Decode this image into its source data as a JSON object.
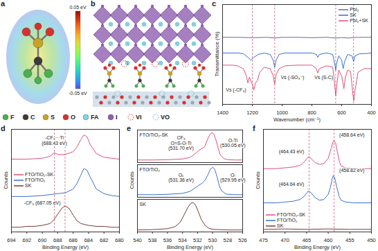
{
  "panels": [
    {
      "panel_label": "a",
      "colorbar": {
        "range": [
          -0.05,
          0.05
        ],
        "ticks": [
          {
            "value": 0.05,
            "label": "0.05 eV"
          },
          {
            "value": -0.05,
            "label": "-0.05 eV"
          }
        ]
      }
    },
    {
      "panel_label": "b"
    }
  ],
  "atom_legend": [
    {
      "name": "F",
      "color": "#4caf50",
      "marker": "circle"
    },
    {
      "name": "C",
      "color": "#3a3a3a",
      "marker": "circle"
    },
    {
      "name": "S",
      "color": "#c9a227",
      "marker": "circle"
    },
    {
      "name": "O",
      "color": "#d9302c",
      "marker": "circle"
    },
    {
      "name": "FA",
      "color": "#7fd3e0",
      "marker": "circle"
    },
    {
      "name": "I",
      "color": "#8e5fb0",
      "marker": "circle"
    },
    {
      "name": "VI",
      "color": "#d9302c",
      "marker": "dashed-circle"
    },
    {
      "name": "VO",
      "color": "#3bb6c8",
      "marker": "dashed-circle"
    }
  ],
  "chart_data": [
    {
      "type": "line",
      "panel_label": "c",
      "x_label": "Wavenumber (cm⁻¹)",
      "y_label": "Transmittance (%)",
      "xlim": [
        1400,
        400
      ],
      "xticks": [
        1400,
        1200,
        1000,
        800,
        600,
        400
      ],
      "ylim": [
        0,
        140
      ],
      "tick_labels": "x",
      "legend": "top-right",
      "vlines": [
        1200,
        1050,
        640,
        520
      ],
      "annotations": [
        {
          "text": "Vs (-CF₃)",
          "x": 1310,
          "y": 20
        },
        {
          "text": "Vs (-SO₃⁻)",
          "x": 930,
          "y": 38
        },
        {
          "text": "Vs (S-C)",
          "x": 720,
          "y": 38
        }
      ],
      "series": [
        {
          "name": "PbI₂",
          "color": "#7a5fa0",
          "x": [
            1400,
            1300,
            1200,
            1100,
            1050,
            1000,
            900,
            800,
            700,
            640,
            600,
            550,
            500,
            450,
            400
          ],
          "values": [
            94,
            94,
            93.5,
            94,
            93,
            94,
            94,
            93.5,
            94,
            93,
            93.5,
            93,
            94,
            94,
            94
          ]
        },
        {
          "name": "SK",
          "color": "#3a6fd0",
          "x": [
            1400,
            1300,
            1260,
            1230,
            1210,
            1190,
            1160,
            1120,
            1080,
            1060,
            1050,
            1040,
            1020,
            980,
            900,
            800,
            770,
            760,
            750,
            700,
            660,
            645,
            640,
            635,
            620,
            600,
            590,
            580,
            560,
            530,
            520,
            510,
            480,
            450,
            400
          ],
          "values": [
            72,
            72,
            71,
            66,
            62,
            66,
            70,
            72,
            70,
            62,
            52,
            62,
            70,
            72,
            72,
            72,
            70,
            66,
            70,
            72,
            70,
            55,
            48,
            56,
            68,
            62,
            50,
            60,
            70,
            68,
            60,
            68,
            71,
            71,
            72
          ]
        },
        {
          "name": "PbI₂+SK",
          "color": "#e0507a",
          "x": [
            1400,
            1330,
            1300,
            1260,
            1240,
            1230,
            1220,
            1200,
            1190,
            1180,
            1165,
            1150,
            1120,
            1080,
            1060,
            1050,
            1040,
            1020,
            980,
            900,
            800,
            770,
            760,
            750,
            700,
            660,
            648,
            640,
            632,
            620,
            600,
            585,
            575,
            560,
            540,
            525,
            518,
            510,
            490,
            450,
            400
          ],
          "values": [
            55,
            55,
            54,
            50,
            40,
            30,
            38,
            28,
            20,
            30,
            34,
            45,
            52,
            50,
            40,
            28,
            42,
            50,
            54,
            55,
            55,
            50,
            44,
            50,
            54,
            52,
            30,
            12,
            28,
            48,
            40,
            22,
            38,
            48,
            46,
            15,
            5,
            20,
            45,
            50,
            50
          ]
        }
      ]
    },
    {
      "type": "line",
      "panel_label": "d",
      "x_label": "Binding Energy (eV)",
      "y_label": "Counts",
      "xlim": [
        694,
        680
      ],
      "xticks": [
        694,
        692,
        690,
        688,
        686,
        684,
        682,
        680
      ],
      "ylim": [
        0,
        110
      ],
      "tick_labels": "x",
      "legend": "left",
      "vlines": [
        688.43,
        687.05
      ],
      "annotations": [
        {
          "text": "-CF₃···Ti\n(688.43 eV)",
          "x": 688.43,
          "y": 98
        },
        {
          "text": "-CF₃ (687.05 eV)",
          "x": 690,
          "y": 31
        }
      ],
      "series": [
        {
          "name": "FTO/TiO₂-SK",
          "color": "#e0507a",
          "x": [
            694,
            692,
            690,
            689,
            688.43,
            688,
            687,
            686,
            685.5,
            685,
            684.6,
            684.2,
            683.8,
            683,
            682,
            681,
            680
          ],
          "values": [
            78,
            78,
            79,
            81,
            85,
            83,
            83,
            86,
            91,
            99,
            104,
            102,
            94,
            84,
            80,
            79,
            78
          ]
        },
        {
          "name": "FTO/TiO₂",
          "color": "#3a6fd0",
          "x": [
            694,
            692,
            690,
            689,
            688,
            687,
            686,
            685.5,
            685,
            684.6,
            684.2,
            683.8,
            683,
            682,
            681,
            680
          ],
          "values": [
            38,
            38,
            39,
            40,
            41,
            42,
            46,
            52,
            61,
            68,
            66,
            59,
            46,
            41,
            39,
            38
          ]
        },
        {
          "name": "SK",
          "color": "#7a3a3a",
          "x": [
            694,
            693,
            692,
            691,
            690,
            689,
            688.5,
            688,
            687.5,
            687.05,
            686.5,
            686,
            685.5,
            685,
            684,
            683,
            682,
            681,
            680
          ],
          "values": [
            5,
            5,
            6,
            6,
            7,
            9,
            13,
            19,
            25,
            28,
            25,
            18,
            12,
            9,
            7,
            6,
            6,
            5,
            5
          ]
        }
      ]
    },
    {
      "type": "small_multiples",
      "panel_label": "e",
      "x_label": "Binding Energy (eV)",
      "y_label": "Counts",
      "xlim": [
        540,
        526
      ],
      "xticks": [
        540,
        538,
        536,
        534,
        532,
        530,
        528,
        526
      ],
      "ylim": [
        0,
        100
      ],
      "tick_labels": "x",
      "annotations": [
        {
          "series": "FTO/TiO₂-SK",
          "text": "CF₃\nO=S-O-Ti\n(531.70 eV)",
          "x": 534.2,
          "y": 60
        },
        {
          "series": "FTO/TiO₂-SK",
          "text": "O-Ti\n(530.05 eV)",
          "x": 527.3,
          "y": 60
        },
        {
          "series": "FTO/TiO₂",
          "text": "Oᵥ\n(531.36 eV)",
          "x": 534.2,
          "y": 60
        },
        {
          "series": "FTO/TiO₂",
          "text": "Oₗ\n(529.95 eV)",
          "x": 527.3,
          "y": 60
        }
      ],
      "series": [
        {
          "name": "FTO/TiO₂-SK",
          "color": "#e0507a",
          "x": [
            540,
            538,
            536,
            534,
            533,
            532.5,
            532,
            531.7,
            531.3,
            531,
            530.6,
            530.3,
            530.05,
            529.8,
            529.5,
            529.2,
            529,
            528.5,
            528,
            527,
            526
          ],
          "values": [
            8,
            8,
            9,
            11,
            16,
            24,
            34,
            40,
            44,
            52,
            75,
            88,
            92,
            86,
            65,
            40,
            25,
            12,
            9,
            8,
            8
          ]
        },
        {
          "name": "FTO/TiO₂",
          "color": "#3a6fd0",
          "x": [
            540,
            538,
            536,
            534,
            533,
            532.5,
            532,
            531.6,
            531.36,
            531,
            530.6,
            530.3,
            529.95,
            529.7,
            529.4,
            529.1,
            528.8,
            528.3,
            528,
            527,
            526
          ],
          "values": [
            8,
            8,
            9,
            12,
            18,
            26,
            34,
            40,
            44,
            52,
            70,
            86,
            92,
            85,
            62,
            35,
            20,
            11,
            9,
            8,
            8
          ]
        },
        {
          "name": "SK",
          "color": "#7a3a3a",
          "x": [
            540,
            538,
            536,
            535,
            534.3,
            533.8,
            533.3,
            532.9,
            532.6,
            532.3,
            531.9,
            531.5,
            531,
            530.5,
            530,
            529,
            528,
            526
          ],
          "values": [
            6,
            7,
            10,
            16,
            30,
            52,
            75,
            88,
            90,
            84,
            62,
            38,
            20,
            11,
            8,
            7,
            6,
            6
          ]
        }
      ]
    },
    {
      "type": "line",
      "panel_label": "f",
      "x_label": "Binding Energy (eV)",
      "y_label": "Counts",
      "xlim": [
        475,
        450
      ],
      "xticks": [
        475,
        470,
        465,
        460,
        455,
        450
      ],
      "ylim": [
        0,
        120
      ],
      "tick_labels": "x",
      "legend": "bottom-left",
      "vlines": [
        464.43,
        458.64
      ],
      "annotations": [
        {
          "text": "(464.43 eV)",
          "x": 468.5,
          "y": 94
        },
        {
          "text": "(458.64 eV)",
          "x": 454.5,
          "y": 113
        },
        {
          "text": "(464.64 eV)",
          "x": 468.5,
          "y": 56
        },
        {
          "text": "(458.82 eV)",
          "x": 454.5,
          "y": 72
        }
      ],
      "series": [
        {
          "name": "FTO/TiO₂-SK",
          "color": "#e0507a",
          "x": [
            475,
            472,
            470,
            468,
            466.5,
            465.5,
            464.9,
            464.43,
            464,
            463,
            462,
            461,
            460,
            459.3,
            458.9,
            458.64,
            458.3,
            457.9,
            457.4,
            457,
            456,
            454,
            450
          ],
          "values": [
            74,
            74,
            75,
            76,
            78,
            82,
            86,
            88,
            86,
            81,
            79,
            80,
            86,
            98,
            105,
            107,
            104,
            94,
            82,
            77,
            75,
            74,
            74
          ]
        },
        {
          "name": "FTO/TiO₂",
          "color": "#3a6fd0",
          "x": [
            475,
            472,
            470,
            468,
            466.5,
            465.5,
            464.9,
            464.64,
            464,
            463,
            462,
            461,
            460,
            459.5,
            459.1,
            458.82,
            458.5,
            458,
            457.5,
            457,
            456,
            454,
            450
          ],
          "values": [
            34,
            34,
            35,
            36,
            38,
            42,
            46,
            48,
            46,
            40,
            37,
            38,
            44,
            52,
            62,
            66,
            63,
            52,
            42,
            37,
            35,
            34,
            34
          ]
        },
        {
          "name": "SK",
          "color": "#7a3a3a",
          "x": [
            475,
            470,
            465,
            460,
            455,
            450
          ],
          "values": [
            3,
            3.5,
            3,
            3.5,
            3,
            3
          ]
        }
      ]
    }
  ]
}
